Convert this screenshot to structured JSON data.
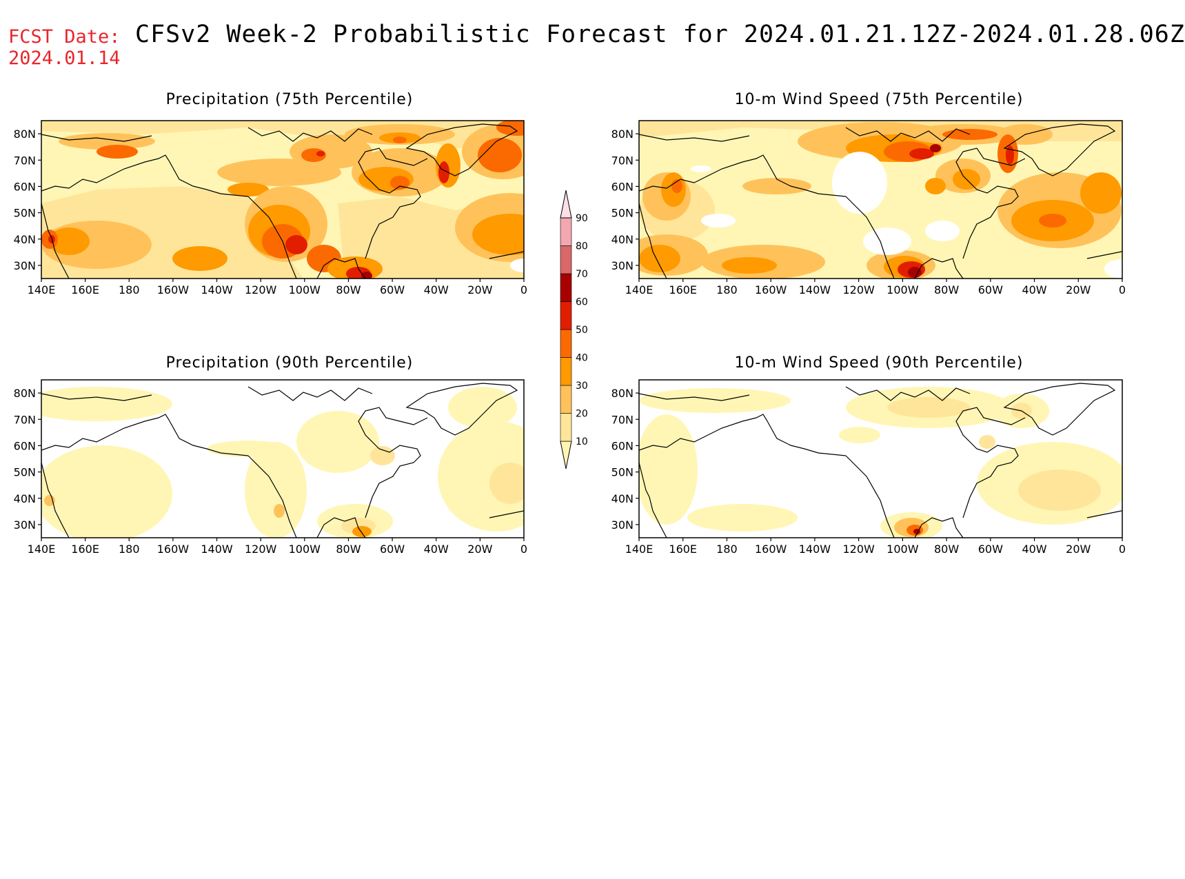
{
  "header": {
    "fcst_label": "FCST Date:",
    "fcst_date": "2024.01.14",
    "title": "CFSv2 Week-2 Probabilistic Forecast for 2024.01.21.12Z-2024.01.28.06Z"
  },
  "axes": {
    "lat_ticks": [
      "80N",
      "70N",
      "60N",
      "50N",
      "40N",
      "30N"
    ],
    "lon_ticks": [
      "140E",
      "160E",
      "180",
      "160W",
      "140W",
      "120W",
      "100W",
      "80W",
      "60W",
      "40W",
      "20W",
      "0"
    ],
    "lat_range": [
      25,
      85
    ],
    "lon_range": [
      "140E",
      "0"
    ]
  },
  "panels": [
    {
      "title": "Precipitation (75th Percentile)"
    },
    {
      "title": "10-m Wind Speed (75th Percentile)"
    },
    {
      "title": "Precipitation (90th Percentile)"
    },
    {
      "title": "10-m Wind Speed (90th Percentile)"
    }
  ],
  "colorbar": {
    "levels": [
      "10",
      "20",
      "30",
      "40",
      "50",
      "60",
      "70",
      "80",
      "90"
    ],
    "colors": [
      "#fff6b5",
      "#ffe59a",
      "#ffc25a",
      "#ff9a00",
      "#fb6a00",
      "#e21e00",
      "#a80000",
      "#d96868",
      "#f3a7b0",
      "#fde0e6"
    ]
  }
}
